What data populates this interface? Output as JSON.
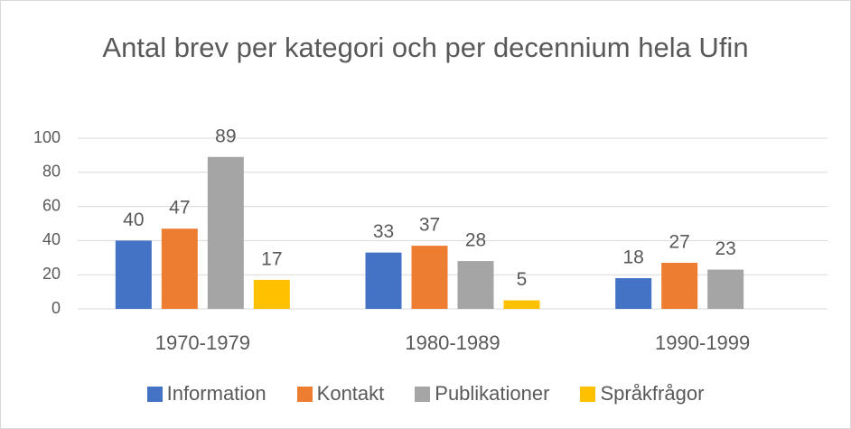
{
  "chart_data": {
    "type": "bar",
    "title": "Antal brev per kategori och per decennium hela Ufin",
    "categories": [
      "1970-1979",
      "1980-1989",
      "1990-1999"
    ],
    "series": [
      {
        "name": "Information",
        "color": "#4472c4",
        "values": [
          40,
          33,
          18
        ]
      },
      {
        "name": "Kontakt",
        "color": "#ed7d31",
        "values": [
          47,
          37,
          27
        ]
      },
      {
        "name": "Publikationer",
        "color": "#a5a5a5",
        "values": [
          89,
          28,
          23
        ]
      },
      {
        "name": "Språkfrågor",
        "color": "#ffc000",
        "values": [
          17,
          5,
          null
        ]
      }
    ],
    "ylim": [
      0,
      100
    ],
    "yticks": [
      0,
      20,
      40,
      60,
      80,
      100
    ],
    "grid": true,
    "legend": "bottom"
  }
}
